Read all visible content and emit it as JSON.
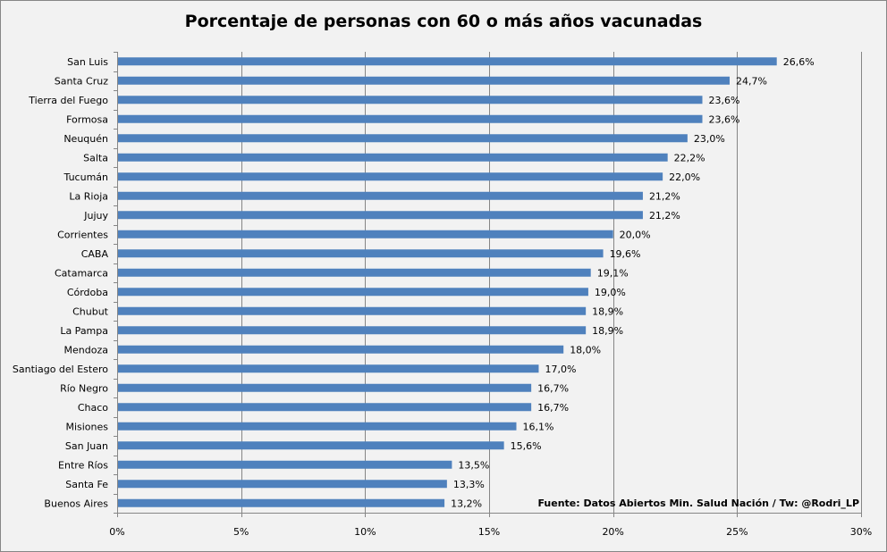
{
  "chart_data": {
    "type": "bar",
    "orientation": "horizontal",
    "title": "Porcentaje de personas con 60 o más años vacunadas",
    "categories": [
      "San Luis",
      "Santa Cruz",
      "Tierra del Fuego",
      "Formosa",
      "Neuquén",
      "Salta",
      "Tucumán",
      "La Rioja",
      "Jujuy",
      "Corrientes",
      "CABA",
      "Catamarca",
      "Córdoba",
      "Chubut",
      "La Pampa",
      "Mendoza",
      "Santiago del Estero",
      "Río Negro",
      "Chaco",
      "Misiones",
      "San Juan",
      "Entre Ríos",
      "Santa Fe",
      "Buenos Aires"
    ],
    "values": [
      26.6,
      24.7,
      23.6,
      23.6,
      23.0,
      22.2,
      22.0,
      21.2,
      21.2,
      20.0,
      19.6,
      19.1,
      19.0,
      18.9,
      18.9,
      18.0,
      17.0,
      16.7,
      16.7,
      16.1,
      15.6,
      13.5,
      13.3,
      13.2
    ],
    "value_labels": [
      "26,6%",
      "24,7%",
      "23,6%",
      "23,6%",
      "23,0%",
      "22,2%",
      "22,0%",
      "21,2%",
      "21,2%",
      "20,0%",
      "19,6%",
      "19,1%",
      "19,0%",
      "18,9%",
      "18,9%",
      "18,0%",
      "17,0%",
      "16,7%",
      "16,7%",
      "16,1%",
      "15,6%",
      "13,5%",
      "13,3%",
      "13,2%"
    ],
    "xlim": [
      0,
      30
    ],
    "x_ticks": [
      0,
      5,
      10,
      15,
      20,
      25,
      30
    ],
    "x_tick_labels": [
      "0%",
      "5%",
      "10%",
      "15%",
      "20%",
      "25%",
      "30%"
    ],
    "xlabel": "",
    "ylabel": "",
    "grid": "vertical",
    "legend": "none",
    "bar_color": "#4f81bd",
    "annotation": "Fuente: Datos Abiertos Min. Salud Nación / Tw: @Rodri_LP"
  }
}
